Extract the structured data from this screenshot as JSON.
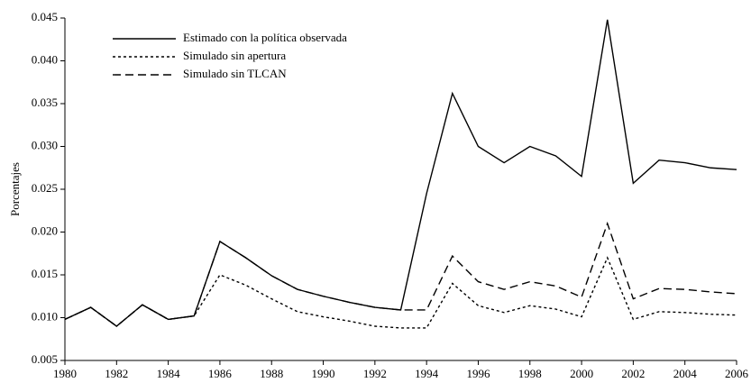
{
  "chart_data": {
    "type": "line",
    "ylabel": "Porcentajes",
    "x": [
      1980,
      1981,
      1982,
      1983,
      1984,
      1985,
      1986,
      1987,
      1988,
      1989,
      1990,
      1991,
      1992,
      1993,
      1994,
      1995,
      1996,
      1997,
      1998,
      1999,
      2000,
      2001,
      2002,
      2003,
      2004,
      2005,
      2006
    ],
    "series": [
      {
        "name": "Estimado con la política observada",
        "color": "#000000",
        "dash": "none",
        "values": [
          0.0098,
          0.0112,
          0.009,
          0.0115,
          0.0098,
          0.0102,
          0.0189,
          0.017,
          0.0149,
          0.0133,
          0.0125,
          0.0118,
          0.0112,
          0.0109,
          0.0245,
          0.0362,
          0.03,
          0.0281,
          0.03,
          0.0289,
          0.0265,
          0.0448,
          0.0257,
          0.0284,
          0.0281,
          0.0275,
          0.0273
        ]
      },
      {
        "name": "Simulado sin apertura",
        "color": "#000000",
        "dash": "3,3",
        "values": [
          0.0098,
          0.0112,
          0.009,
          0.0115,
          0.0098,
          0.0102,
          0.015,
          0.0138,
          0.0122,
          0.0107,
          0.0101,
          0.0096,
          0.009,
          0.0088,
          0.0088,
          0.014,
          0.0114,
          0.0106,
          0.0114,
          0.011,
          0.0101,
          0.017,
          0.0098,
          0.0107,
          0.0106,
          0.0104,
          0.0103
        ]
      },
      {
        "name": "Simulado sin TLCAN",
        "color": "#000000",
        "dash": "9,5",
        "values": [
          0.0098,
          0.0112,
          0.009,
          0.0115,
          0.0098,
          0.0102,
          0.0189,
          0.017,
          0.0149,
          0.0133,
          0.0125,
          0.0118,
          0.0112,
          0.0109,
          0.0109,
          0.0172,
          0.0142,
          0.0133,
          0.0142,
          0.0137,
          0.0124,
          0.021,
          0.0122,
          0.0134,
          0.0133,
          0.013,
          0.0128
        ]
      }
    ],
    "xlim": [
      1980,
      2006
    ],
    "xticks": [
      1980,
      1982,
      1984,
      1986,
      1988,
      1990,
      1992,
      1994,
      1996,
      1998,
      2000,
      2002,
      2004,
      2006
    ],
    "ylim": [
      0.005,
      0.045
    ],
    "yticks": [
      0.005,
      {
        "value": 0.01,
        "label": "0.010"
      },
      0.015,
      {
        "value": 0.02,
        "label": "0.020"
      },
      0.025,
      {
        "value": 0.03,
        "label": "0.030"
      },
      0.035,
      {
        "value": 0.04,
        "label": "0.040"
      },
      0.045
    ],
    "legend": "upper left"
  }
}
